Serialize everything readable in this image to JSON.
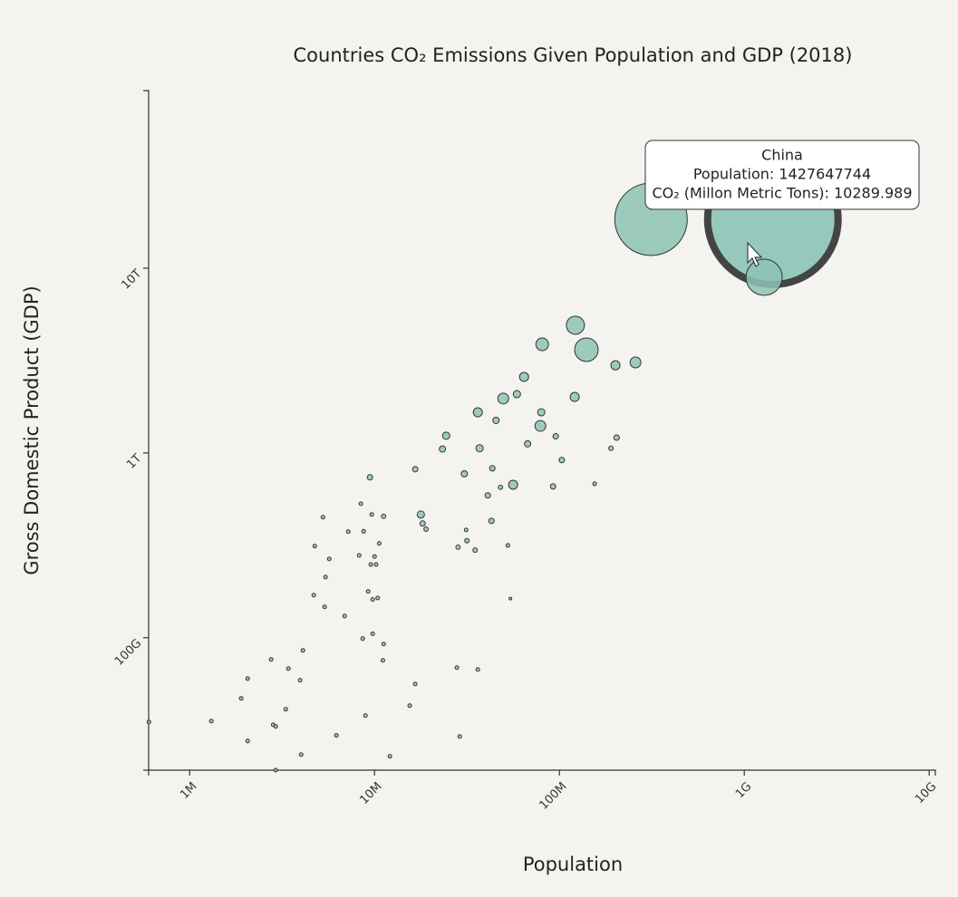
{
  "chart_data": {
    "type": "scatter",
    "title": "Countries CO₂ Emissions Given Population and GDP (2018)",
    "x_label": "Population",
    "y_label": "Gross Domestic Product (GDP)",
    "x_scale": "log",
    "y_scale": "log",
    "xlim": [
      600000,
      10800000000
    ],
    "ylim": [
      19200000000,
      91400000000000
    ],
    "xticks": [
      {
        "value": 1000000,
        "label": "1M"
      },
      {
        "value": 10000000,
        "label": "10M"
      },
      {
        "value": 100000000,
        "label": "100M"
      },
      {
        "value": 1000000000,
        "label": "1G"
      },
      {
        "value": 10000000000,
        "label": "10G"
      }
    ],
    "yticks": [
      {
        "value": 100000000000,
        "label": "100G"
      },
      {
        "value": 1000000000000,
        "label": "1T"
      },
      {
        "value": 10000000000000,
        "label": "10T"
      }
    ],
    "series": [
      {
        "color": "#8cc3b5",
        "x": [
          1427647744,
          313000000,
          1280000000,
          122000000,
          140000000,
          80700000,
          258000000,
          201000000,
          64400000,
          49700000,
          58900000,
          121000000,
          36200000,
          79800000,
          78900000,
          45400000,
          24400000,
          95500000,
          67300000,
          37000000,
          23300000,
          204000000,
          190000000,
          103000000,
          43400000,
          30600000,
          16600000,
          9450000,
          56200000,
          92400000,
          155000000,
          48000000,
          41000000,
          8440000,
          17800000,
          5260000,
          9660000,
          11200000,
          18200000,
          19000000,
          42900000,
          7210000,
          8730000,
          31300000,
          10600000,
          31600000,
          28300000,
          35000000,
          52600000,
          4750000,
          5690000,
          8260000,
          10000000,
          9550000,
          10200000,
          5430000,
          4690000,
          9240000,
          9770000,
          10400000,
          5370000,
          54300000,
          6890000,
          9770000,
          8630000,
          11200000,
          4100000,
          2760000,
          11100000,
          3420000,
          27900000,
          36200000,
          2060000,
          3960000,
          16600000,
          1900000,
          15500000,
          3310000,
          8930000,
          1310000,
          602000,
          2830000,
          2920000,
          6220000,
          28900000,
          2060000,
          4010000,
          12100000,
          2920000
        ],
        "values": [
          18400000000000,
          18400000000000,
          8930000000000,
          4910000000000,
          3620000000000,
          3870000000000,
          3090000000000,
          2980000000000,
          2580000000000,
          1970000000000,
          2080000000000,
          2010000000000,
          1660000000000,
          1660000000000,
          1400000000000,
          1500000000000,
          1240000000000,
          1230000000000,
          1120000000000,
          1060000000000,
          1050000000000,
          1210000000000,
          1060000000000,
          915000000000,
          826000000000,
          771000000000,
          816000000000,
          738000000000,
          673000000000,
          659000000000,
          681000000000,
          652000000000,
          589000000000,
          531000000000,
          464000000000,
          449000000000,
          464000000000,
          454000000000,
          415000000000,
          387000000000,
          429000000000,
          375000000000,
          377000000000,
          383000000000,
          324000000000,
          335000000000,
          309000000000,
          298000000000,
          316000000000,
          313000000000,
          267000000000,
          279000000000,
          275000000000,
          249000000000,
          249000000000,
          213000000000,
          170000000000,
          178000000000,
          161000000000,
          164000000000,
          147000000000,
          163000000000,
          131000000000,
          105000000000,
          98900000000,
          92400000000,
          85400000000,
          76200000000,
          75400000000,
          68100000000,
          68900000000,
          67300000000,
          60100000000,
          58900000000,
          56200000000,
          47000000000,
          42900000000,
          41000000000,
          37900000000,
          35400000000,
          35000000000,
          33800000000,
          33100000000,
          29600000000,
          29200000000,
          27600000000,
          23300000000,
          22800000000,
          19200000000
        ],
        "sizes": [
          10289.989,
          3174,
          794,
          198,
          335,
          97,
          71,
          50,
          50,
          71,
          32,
          50,
          50,
          32,
          71,
          24,
          32,
          18,
          24,
          32,
          24,
          18,
          12,
          18,
          18,
          24,
          18,
          18,
          50,
          18,
          8,
          12,
          18,
          8,
          32,
          8,
          8,
          12,
          18,
          12,
          18,
          8,
          8,
          8,
          8,
          12,
          12,
          12,
          8,
          8,
          8,
          8,
          8,
          8,
          8,
          8,
          8,
          8,
          8,
          8,
          8,
          4,
          8,
          8,
          8,
          8,
          8,
          8,
          8,
          8,
          8,
          8,
          8,
          8,
          8,
          8,
          8,
          8,
          8,
          8,
          8,
          8,
          8,
          8,
          8,
          8,
          8,
          8,
          8
        ]
      }
    ],
    "tooltip": {
      "title": "China",
      "lines": [
        "Population: 1427647744",
        "CO₂ (Millon Metric Tons): 10289.989"
      ]
    }
  }
}
